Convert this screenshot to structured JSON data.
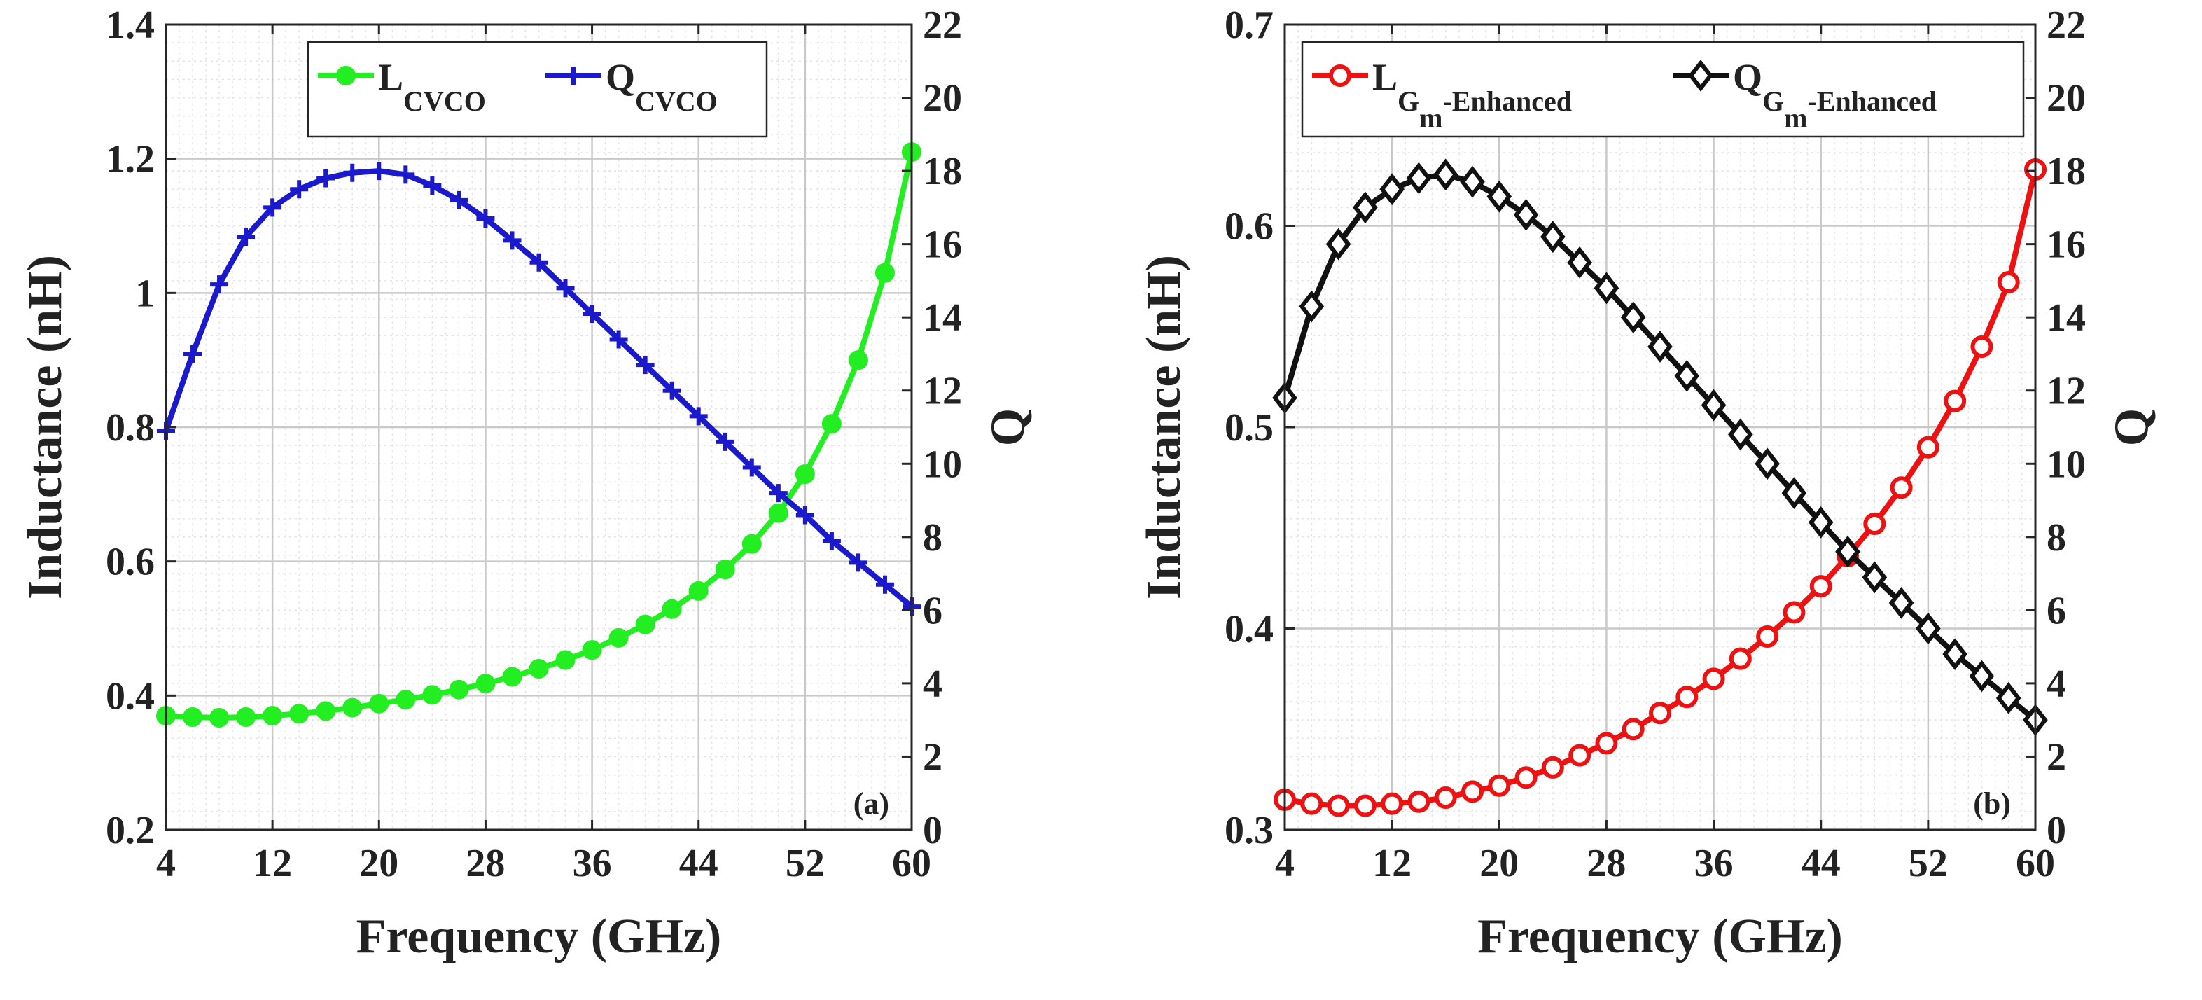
{
  "chart_data": [
    {
      "type": "line",
      "panel_label": "(a)",
      "xlabel": "Frequency (GHz)",
      "ylabel": "Inductance (nH)",
      "y2label": "Q",
      "xlim": [
        4,
        60
      ],
      "ylim": [
        0.2,
        1.4
      ],
      "y2lim": [
        0,
        22
      ],
      "xticks": [
        "4",
        "12",
        "20",
        "28",
        "36",
        "44",
        "52",
        "60"
      ],
      "yticks": [
        "0.2",
        "0.4",
        "0.6",
        "0.8",
        "1",
        "1.2",
        "1.4"
      ],
      "y2ticks": [
        "0",
        "2",
        "4",
        "6",
        "8",
        "10",
        "12",
        "14",
        "16",
        "18",
        "20",
        "22"
      ],
      "grid": true,
      "legend_position": "top",
      "x": [
        4,
        6,
        8,
        10,
        12,
        14,
        16,
        18,
        20,
        22,
        24,
        26,
        28,
        30,
        32,
        34,
        36,
        38,
        40,
        42,
        44,
        46,
        48,
        50,
        52,
        54,
        56,
        58,
        60
      ],
      "series": [
        {
          "name": "L",
          "name_sub": "CVCO",
          "axis": "left",
          "color": "#22ee22",
          "marker": "circle",
          "values": [
            0.37,
            0.368,
            0.367,
            0.368,
            0.37,
            0.373,
            0.377,
            0.382,
            0.388,
            0.394,
            0.401,
            0.409,
            0.418,
            0.428,
            0.44,
            0.453,
            0.468,
            0.486,
            0.506,
            0.529,
            0.556,
            0.588,
            0.626,
            0.672,
            0.73,
            0.805,
            0.9,
            1.03,
            1.21
          ]
        },
        {
          "name": "Q",
          "name_sub": "CVCO",
          "axis": "right",
          "color": "#1a1acc",
          "marker": "plus",
          "values": [
            10.9,
            13.0,
            14.9,
            16.2,
            17.0,
            17.5,
            17.8,
            17.95,
            18.0,
            17.9,
            17.6,
            17.2,
            16.7,
            16.1,
            15.5,
            14.8,
            14.1,
            13.4,
            12.7,
            12.0,
            11.3,
            10.6,
            9.9,
            9.2,
            8.6,
            7.9,
            7.3,
            6.7,
            6.1
          ]
        }
      ]
    },
    {
      "type": "line",
      "panel_label": "(b)",
      "xlabel": "Frequency (GHz)",
      "ylabel": "Inductance (nH)",
      "y2label": "Q",
      "xlim": [
        4,
        60
      ],
      "ylim": [
        0.3,
        0.7
      ],
      "y2lim": [
        0,
        22
      ],
      "xticks": [
        "4",
        "12",
        "20",
        "28",
        "36",
        "44",
        "52",
        "60"
      ],
      "yticks": [
        "0.3",
        "0.4",
        "0.5",
        "0.6",
        "0.7"
      ],
      "y2ticks": [
        "0",
        "2",
        "4",
        "6",
        "8",
        "10",
        "12",
        "14",
        "16",
        "18",
        "20",
        "22"
      ],
      "grid": true,
      "legend_position": "top",
      "x": [
        4,
        6,
        8,
        10,
        12,
        14,
        16,
        18,
        20,
        22,
        24,
        26,
        28,
        30,
        32,
        34,
        36,
        38,
        40,
        42,
        44,
        46,
        48,
        50,
        52,
        54,
        56,
        58,
        60
      ],
      "series": [
        {
          "name": "L",
          "name_sub": "G",
          "name_subsub": "m",
          "name_suffix": "-Enhanced",
          "axis": "left",
          "color": "#ee1111",
          "marker": "circle",
          "values": [
            0.315,
            0.313,
            0.312,
            0.312,
            0.313,
            0.314,
            0.316,
            0.319,
            0.322,
            0.326,
            0.331,
            0.337,
            0.343,
            0.35,
            0.358,
            0.366,
            0.375,
            0.385,
            0.396,
            0.408,
            0.421,
            0.436,
            0.452,
            0.47,
            0.49,
            0.513,
            0.54,
            0.572,
            0.628
          ]
        },
        {
          "name": "Q",
          "name_sub": "G",
          "name_subsub": "m",
          "name_suffix": "-Enhanced",
          "axis": "right",
          "color": "#111111",
          "marker": "diamond",
          "values": [
            11.8,
            14.3,
            16.0,
            17.0,
            17.5,
            17.8,
            17.9,
            17.7,
            17.3,
            16.8,
            16.2,
            15.5,
            14.8,
            14.0,
            13.2,
            12.4,
            11.6,
            10.8,
            10.0,
            9.2,
            8.4,
            7.6,
            6.9,
            6.2,
            5.5,
            4.8,
            4.2,
            3.6,
            3.0
          ]
        }
      ]
    }
  ]
}
